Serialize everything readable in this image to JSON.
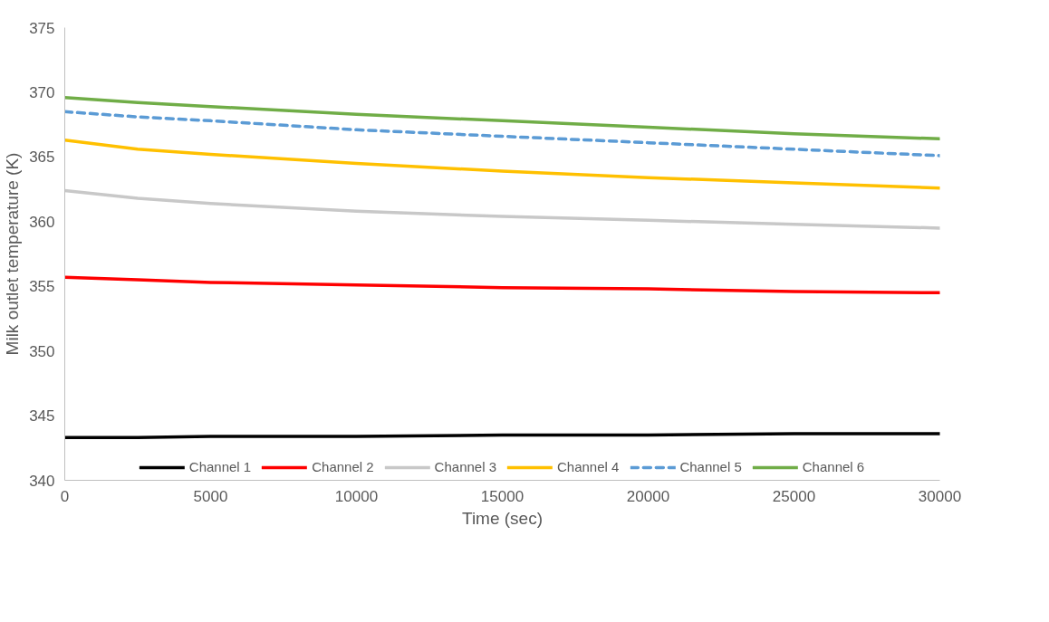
{
  "chart_data": {
    "type": "line",
    "xlabel": "Time (sec)",
    "ylabel": "Milk outlet temperature (K)",
    "x": [
      0,
      2500,
      5000,
      10000,
      15000,
      20000,
      25000,
      30000
    ],
    "series": [
      {
        "name": "Channel 1",
        "color": "#000000",
        "values": [
          343.3,
          343.3,
          343.4,
          343.4,
          343.5,
          343.5,
          343.6,
          343.6
        ]
      },
      {
        "name": "Channel 2",
        "color": "#ff0000",
        "values": [
          355.7,
          355.5,
          355.3,
          355.1,
          354.9,
          354.8,
          354.6,
          354.5
        ]
      },
      {
        "name": "Channel 3",
        "color": "#c8c8c8",
        "values": [
          362.4,
          361.8,
          361.4,
          360.8,
          360.4,
          360.1,
          359.8,
          359.5
        ]
      },
      {
        "name": "Channel 4",
        "color": "#ffc000",
        "values": [
          366.3,
          365.6,
          365.2,
          364.5,
          363.9,
          363.4,
          363.0,
          362.6
        ]
      },
      {
        "name": "Channel 5",
        "color": "#5b9bd5",
        "line_style": "dashed",
        "values": [
          368.5,
          368.1,
          367.8,
          367.1,
          366.6,
          366.1,
          365.6,
          365.1
        ]
      },
      {
        "name": "Channel 6",
        "color": "#70ad47",
        "values": [
          369.6,
          369.2,
          368.9,
          368.3,
          367.8,
          367.3,
          366.8,
          366.4
        ]
      }
    ],
    "xlim": [
      0,
      30000
    ],
    "xticks": [
      0,
      5000,
      10000,
      15000,
      20000,
      25000,
      30000
    ],
    "ylim": [
      340,
      375
    ],
    "yticks": [
      340,
      345,
      350,
      355,
      360,
      365,
      370,
      375
    ],
    "grid": false,
    "legend": "bottom",
    "marker": "none",
    "line_style": "solid"
  }
}
